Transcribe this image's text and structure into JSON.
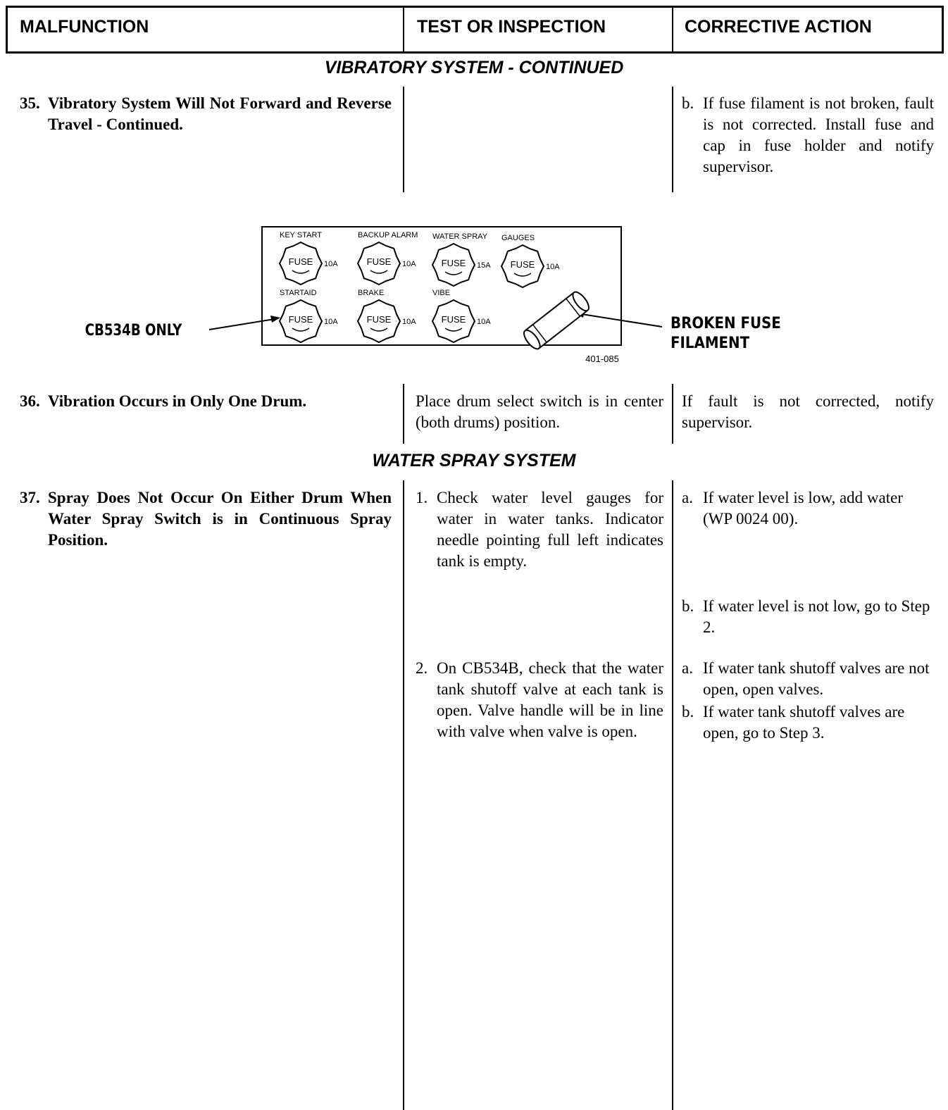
{
  "header": {
    "columns": [
      "MALFUNCTION",
      "TEST OR INSPECTION",
      "CORRECTIVE ACTION"
    ]
  },
  "section_1": {
    "title": "VIBRATORY SYSTEM - CONTINUED",
    "row_35": {
      "number": "35.",
      "malfunction": "Vibratory System Will Not Forward and Reverse Travel - Continued.",
      "action": {
        "letter": "b.",
        "text": "If fuse filament is not broken, fault is not corrected. Install fuse and cap in fuse holder and notify supervisor."
      }
    }
  },
  "figure": {
    "fuse_text": "FUSE",
    "fuses": [
      {
        "label": "KEY START",
        "rating": "10A"
      },
      {
        "label": "BACKUP ALARM",
        "rating": "10A"
      },
      {
        "label": "WATER SPRAY",
        "rating": "15A"
      },
      {
        "label": "GAUGES",
        "rating": "10A"
      },
      {
        "label": "STARTAID",
        "rating": "10A"
      },
      {
        "label": "BRAKE",
        "rating": "10A"
      },
      {
        "label": "VIBE",
        "rating": "10A"
      }
    ],
    "callout_left": "CB534B ONLY",
    "callout_right": [
      "BROKEN FUSE",
      "FILAMENT"
    ],
    "figure_id": "401-085"
  },
  "row_36": {
    "number": "36.",
    "malfunction": "Vibration Occurs in Only One Drum.",
    "test": "Place drum select switch is in center (both drums) position.",
    "action": "If fault is not corrected, notify supervisor."
  },
  "section_2": {
    "title": "WATER SPRAY SYSTEM",
    "row_37": {
      "number": "37.",
      "malfunction": "Spray Does Not Occur On Either Drum When Water Spray Switch is in Continuous Spray Position.",
      "steps": [
        {
          "number": "1.",
          "test": "Check water level gauges for water in water tanks. Indicator needle pointing full left indicates tank is empty.",
          "actions": [
            {
              "letter": "a.",
              "text": "If water level is low, add water (WP 0024 00)."
            },
            {
              "letter": "b.",
              "text": "If water level is not low, go to Step 2."
            }
          ]
        },
        {
          "number": "2.",
          "test": "On CB534B, check that the water tank shutoff valve at each tank is open. Valve handle will be in line with valve when valve is open.",
          "actions": [
            {
              "letter": "a.",
              "text": "If water tank shutoff valves are not open, open valves."
            },
            {
              "letter": "b.",
              "text": "If water tank shutoff valves are open, go to Step 3."
            }
          ]
        }
      ]
    }
  }
}
